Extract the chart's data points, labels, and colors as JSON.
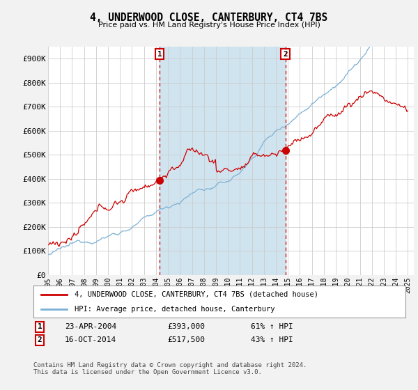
{
  "title": "4, UNDERWOOD CLOSE, CANTERBURY, CT4 7BS",
  "subtitle": "Price paid vs. HM Land Registry's House Price Index (HPI)",
  "ylabel_ticks": [
    "£0",
    "£100K",
    "£200K",
    "£300K",
    "£400K",
    "£500K",
    "£600K",
    "£700K",
    "£800K",
    "£900K"
  ],
  "ytick_values": [
    0,
    100000,
    200000,
    300000,
    400000,
    500000,
    600000,
    700000,
    800000,
    900000
  ],
  "ylim": [
    0,
    950000
  ],
  "xlim_start": 1995.0,
  "xlim_end": 2025.5,
  "xtick_years": [
    1995,
    1996,
    1997,
    1998,
    1999,
    2000,
    2001,
    2002,
    2003,
    2004,
    2005,
    2006,
    2007,
    2008,
    2009,
    2010,
    2011,
    2012,
    2013,
    2014,
    2015,
    2016,
    2017,
    2018,
    2019,
    2020,
    2021,
    2022,
    2023,
    2024,
    2025
  ],
  "red_color": "#cc0000",
  "blue_color": "#7ab0d4",
  "shade_color": "#d0e4f0",
  "marker1_x": 2004.31,
  "marker1_y": 393000,
  "marker2_x": 2014.79,
  "marker2_y": 517500,
  "vline1_x": 2004.31,
  "vline2_x": 2014.79,
  "legend_label_red": "4, UNDERWOOD CLOSE, CANTERBURY, CT4 7BS (detached house)",
  "legend_label_blue": "HPI: Average price, detached house, Canterbury",
  "table_row1": [
    "1",
    "23-APR-2004",
    "£393,000",
    "61% ↑ HPI"
  ],
  "table_row2": [
    "2",
    "16-OCT-2014",
    "£517,500",
    "43% ↑ HPI"
  ],
  "footer": "Contains HM Land Registry data © Crown copyright and database right 2024.\nThis data is licensed under the Open Government Licence v3.0.",
  "background_color": "#f2f2f2",
  "plot_bg_color": "#ffffff",
  "grid_color": "#cccccc"
}
